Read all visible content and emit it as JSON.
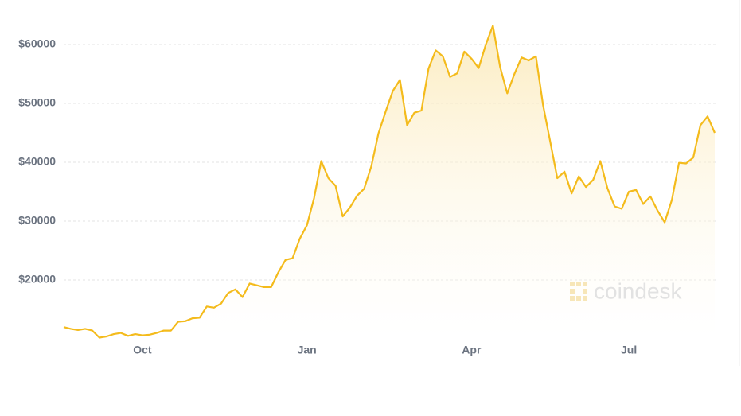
{
  "chart_data": {
    "type": "line",
    "categories": [
      null,
      null,
      null,
      null,
      null,
      null,
      null,
      null,
      null,
      null,
      null,
      "Oct",
      null,
      null,
      null,
      null,
      null,
      null,
      null,
      null,
      null,
      null,
      null,
      null,
      null,
      null,
      null,
      null,
      null,
      null,
      null,
      null,
      null,
      null,
      "Jan",
      null,
      null,
      null,
      null,
      null,
      null,
      null,
      null,
      null,
      null,
      null,
      null,
      null,
      null,
      null,
      null,
      null,
      null,
      null,
      null,
      null,
      null,
      "Apr",
      null,
      null,
      null,
      null,
      null,
      null,
      null,
      null,
      null,
      null,
      null,
      null,
      null,
      null,
      null,
      null,
      null,
      null,
      null,
      null,
      null,
      "Jul",
      null,
      null,
      null,
      null,
      null,
      null,
      null,
      null,
      null,
      null,
      null,
      null
    ],
    "values": [
      12000,
      11700,
      11500,
      11700,
      11400,
      10200,
      10400,
      10800,
      11000,
      10500,
      10800,
      10600,
      10700,
      11000,
      11400,
      11400,
      12900,
      13000,
      13500,
      13600,
      15500,
      15300,
      16000,
      17800,
      18400,
      17100,
      19400,
      19100,
      18800,
      18800,
      21300,
      23400,
      23700,
      27000,
      29300,
      33900,
      40200,
      37300,
      36000,
      30800,
      32300,
      34300,
      35500,
      39300,
      44900,
      48600,
      52100,
      54000,
      46300,
      48400,
      48800,
      55900,
      59000,
      58000,
      54500,
      55100,
      58800,
      57600,
      56000,
      60000,
      63200,
      56200,
      51700,
      55000,
      57800,
      57300,
      58000,
      49700,
      43500,
      37300,
      38400,
      34700,
      37600,
      35800,
      37000,
      40200,
      35600,
      32500,
      32100,
      35000,
      35300,
      32900,
      34200,
      31800,
      29800,
      33600,
      39900,
      39800,
      40800,
      46300,
      47800,
      45000
    ],
    "color": "#f4bb1c",
    "ylim": [
      10000,
      64000
    ],
    "yticks": [
      {
        "value": 20000,
        "label": "$20000"
      },
      {
        "value": 30000,
        "label": "$30000"
      },
      {
        "value": 40000,
        "label": "$40000"
      },
      {
        "value": 50000,
        "label": "$50000"
      },
      {
        "value": 60000,
        "label": "$60000"
      }
    ],
    "grid": true,
    "watermark": "coindesk"
  }
}
